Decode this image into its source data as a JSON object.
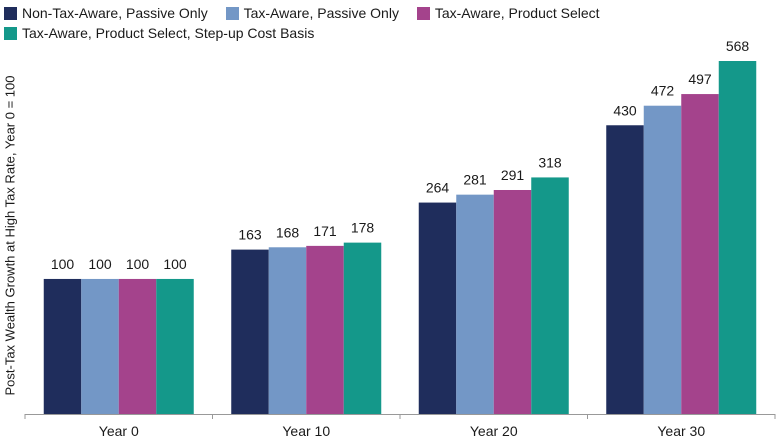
{
  "chart_data": {
    "type": "bar",
    "title": "",
    "xlabel": "",
    "ylabel": "Post-Tax Wealth Growth at High Tax Rate, Year 0 = 100",
    "categories": [
      "Year 0",
      "Year 10",
      "Year 20",
      "Year 30"
    ],
    "series": [
      {
        "name": "Non-Tax-Aware, Passive Only",
        "color": "#1f2d5c",
        "values": [
          100,
          163,
          264,
          430
        ]
      },
      {
        "name": "Tax-Aware, Passive Only",
        "color": "#7397c6",
        "values": [
          100,
          168,
          281,
          472
        ]
      },
      {
        "name": "Tax-Aware, Product Select",
        "color": "#a4438c",
        "values": [
          100,
          171,
          291,
          497
        ]
      },
      {
        "name": "Tax-Aware, Product Select, Step-up Cost Basis",
        "color": "#14988a",
        "values": [
          100,
          178,
          318,
          568
        ]
      }
    ],
    "ylim": [
      -190,
      580
    ],
    "grid": false,
    "legend_position": "top-left",
    "data_labels": true
  }
}
